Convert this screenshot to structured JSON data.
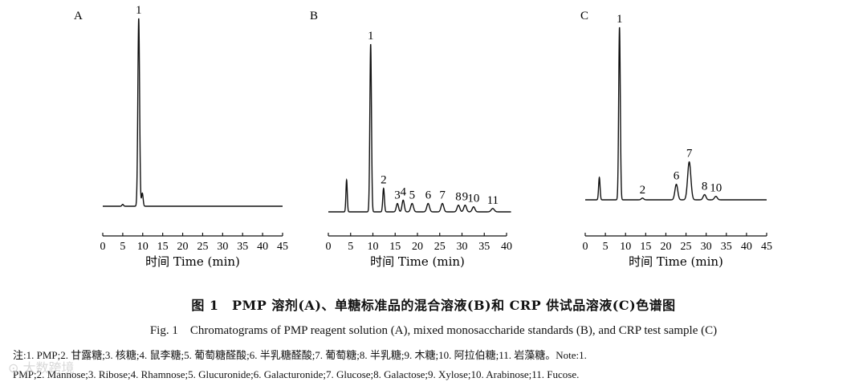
{
  "chart_data": [
    {
      "type": "line",
      "panel_label": "A",
      "xlabel": "时间 Time (min)",
      "xlim": [
        0,
        45
      ],
      "ticks": [
        0,
        5,
        10,
        15,
        20,
        25,
        30,
        35,
        40,
        45
      ],
      "tick_labels": [
        "0",
        "5",
        "10",
        "15",
        "20",
        "25",
        "30",
        "35",
        "40",
        "45"
      ],
      "trace_end": 45,
      "peaks": [
        {
          "x": 5.0,
          "h": 0.01,
          "w": 0.2,
          "label": ""
        },
        {
          "x": 9.0,
          "h": 1.0,
          "w": 0.22,
          "label": "1"
        },
        {
          "x": 9.9,
          "h": 0.07,
          "w": 0.2,
          "label": ""
        }
      ]
    },
    {
      "type": "line",
      "panel_label": "B",
      "xlabel": "时间 Time (min)",
      "xlim": [
        0,
        40
      ],
      "ticks": [
        0,
        5,
        10,
        15,
        20,
        25,
        30,
        35,
        40
      ],
      "tick_labels": [
        "0",
        "5",
        "10",
        "15",
        "20",
        "25",
        "30",
        "35",
        "40"
      ],
      "trace_end": 41,
      "peaks": [
        {
          "x": 4.1,
          "h": 0.19,
          "w": 0.15,
          "label": ""
        },
        {
          "x": 9.5,
          "h": 1.0,
          "w": 0.18,
          "label": "1"
        },
        {
          "x": 12.4,
          "h": 0.14,
          "w": 0.18,
          "label": "2"
        },
        {
          "x": 15.5,
          "h": 0.05,
          "w": 0.25,
          "label": "3"
        },
        {
          "x": 16.8,
          "h": 0.07,
          "w": 0.25,
          "label": "4"
        },
        {
          "x": 18.8,
          "h": 0.05,
          "w": 0.3,
          "label": "5"
        },
        {
          "x": 22.4,
          "h": 0.05,
          "w": 0.3,
          "label": "6"
        },
        {
          "x": 25.6,
          "h": 0.05,
          "w": 0.3,
          "label": "7"
        },
        {
          "x": 29.2,
          "h": 0.04,
          "w": 0.3,
          "label": "8"
        },
        {
          "x": 30.7,
          "h": 0.04,
          "w": 0.3,
          "label": "9"
        },
        {
          "x": 32.6,
          "h": 0.03,
          "w": 0.3,
          "label": "10"
        },
        {
          "x": 36.9,
          "h": 0.02,
          "w": 0.35,
          "label": "11"
        }
      ]
    },
    {
      "type": "line",
      "panel_label": "C",
      "xlabel": "时间 Time (min)",
      "xlim": [
        0,
        45
      ],
      "ticks": [
        0,
        5,
        10,
        15,
        20,
        25,
        30,
        35,
        40,
        45
      ],
      "tick_labels": [
        "0",
        "5",
        "10",
        "15",
        "20",
        "25",
        "30",
        "35",
        "40",
        "45"
      ],
      "trace_end": 45,
      "peaks": [
        {
          "x": 3.5,
          "h": 0.13,
          "w": 0.18,
          "label": ""
        },
        {
          "x": 8.5,
          "h": 1.0,
          "w": 0.2,
          "label": "1"
        },
        {
          "x": 14.2,
          "h": 0.01,
          "w": 0.3,
          "label": "2"
        },
        {
          "x": 22.6,
          "h": 0.09,
          "w": 0.35,
          "label": "6"
        },
        {
          "x": 25.8,
          "h": 0.22,
          "w": 0.4,
          "label": "7"
        },
        {
          "x": 29.6,
          "h": 0.03,
          "w": 0.35,
          "label": "8"
        },
        {
          "x": 32.4,
          "h": 0.02,
          "w": 0.35,
          "label": "10"
        }
      ]
    }
  ],
  "caption_cn": "图 1　PMP 溶剂(A)、单糖标准品的混合溶液(B)和 CRP 供试品溶液(C)色谱图",
  "caption_en": "Fig. 1　Chromatograms of PMP reagent solution (A), mixed monosaccharide standards (B), and CRP test sample (C)",
  "note_line1": "注:1. PMP;2. 甘露糖;3. 核糖;4. 鼠李糖;5. 葡萄糖醛酸;6. 半乳糖醛酸;7. 葡萄糖;8. 半乳糖;9. 木糖;10. 阿拉伯糖;11. 岩藻糖。Note:1.",
  "note_line2": "PMP;2. Mannose;3. Ribose;4. Rhamnose;5. Glucuronide;6. Galacturonide;7. Glucose;8. Galactose;9. Xylose;10. Arabinose;11. Fucose.",
  "watermark": "⊙ 大数跨境"
}
